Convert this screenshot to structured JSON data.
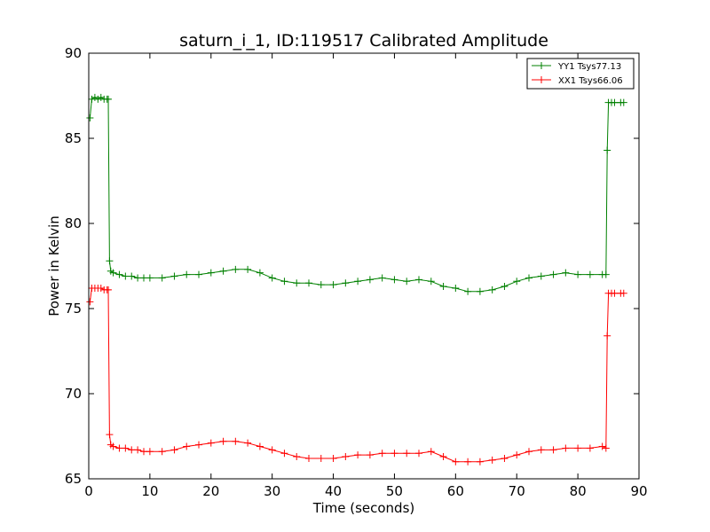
{
  "chart_data": {
    "type": "line",
    "title": "saturn_i_1, ID:119517 Calibrated Amplitude",
    "xlabel": "Time (seconds)",
    "ylabel": "Power in Kelvin",
    "xlim": [
      0,
      90
    ],
    "ylim": [
      65,
      90
    ],
    "xticks": [
      "0",
      "10",
      "20",
      "30",
      "40",
      "50",
      "60",
      "70",
      "80",
      "90"
    ],
    "yticks": [
      "65",
      "70",
      "75",
      "80",
      "85",
      "90"
    ],
    "grid": false,
    "legend_position": "top-right",
    "marker": "+",
    "series": [
      {
        "name": "YY1 Tsys77.13",
        "color": "#008000",
        "x": [
          0.2,
          0.5,
          1,
          1.5,
          2,
          2.5,
          3.0,
          3.2,
          3.4,
          3.6,
          4,
          5,
          6,
          7,
          8,
          9,
          10,
          12,
          14,
          16,
          18,
          20,
          22,
          24,
          26,
          28,
          30,
          32,
          34,
          36,
          38,
          40,
          42,
          44,
          46,
          48,
          50,
          52,
          54,
          56,
          58,
          60,
          62,
          64,
          66,
          68,
          70,
          72,
          74,
          76,
          78,
          80,
          82,
          84,
          84.6,
          84.8,
          85,
          85.5,
          86,
          87,
          87.5
        ],
        "y": [
          86.2,
          87.3,
          87.4,
          87.3,
          87.4,
          87.3,
          87.3,
          87.3,
          77.8,
          77.2,
          77.1,
          77.0,
          76.9,
          76.9,
          76.8,
          76.8,
          76.8,
          76.8,
          76.9,
          77.0,
          77.0,
          77.1,
          77.2,
          77.3,
          77.3,
          77.1,
          76.8,
          76.6,
          76.5,
          76.5,
          76.4,
          76.4,
          76.5,
          76.6,
          76.7,
          76.8,
          76.7,
          76.6,
          76.7,
          76.6,
          76.3,
          76.2,
          76.0,
          76.0,
          76.1,
          76.3,
          76.6,
          76.8,
          76.9,
          77.0,
          77.1,
          77.0,
          77.0,
          77.0,
          77.0,
          84.3,
          87.1,
          87.1,
          87.1,
          87.1,
          87.1
        ]
      },
      {
        "name": "XX1 Tsys66.06",
        "color": "#ff0000",
        "x": [
          0.2,
          0.5,
          1,
          1.5,
          2,
          2.5,
          3.0,
          3.2,
          3.4,
          3.6,
          4,
          5,
          6,
          7,
          8,
          9,
          10,
          12,
          14,
          16,
          18,
          20,
          22,
          24,
          26,
          28,
          30,
          32,
          34,
          36,
          38,
          40,
          42,
          44,
          46,
          48,
          50,
          52,
          54,
          56,
          58,
          60,
          62,
          64,
          66,
          68,
          70,
          72,
          74,
          76,
          78,
          80,
          82,
          84,
          84.6,
          84.8,
          85,
          85.5,
          86,
          87,
          87.5
        ],
        "y": [
          75.4,
          76.2,
          76.2,
          76.2,
          76.2,
          76.1,
          76.1,
          76.1,
          67.6,
          67.0,
          66.9,
          66.8,
          66.8,
          66.7,
          66.7,
          66.6,
          66.6,
          66.6,
          66.7,
          66.9,
          67.0,
          67.1,
          67.2,
          67.2,
          67.1,
          66.9,
          66.7,
          66.5,
          66.3,
          66.2,
          66.2,
          66.2,
          66.3,
          66.4,
          66.4,
          66.5,
          66.5,
          66.5,
          66.5,
          66.6,
          66.3,
          66.0,
          66.0,
          66.0,
          66.1,
          66.2,
          66.4,
          66.6,
          66.7,
          66.7,
          66.8,
          66.8,
          66.8,
          66.9,
          66.8,
          73.4,
          75.9,
          75.9,
          75.9,
          75.9,
          75.9
        ]
      }
    ]
  }
}
